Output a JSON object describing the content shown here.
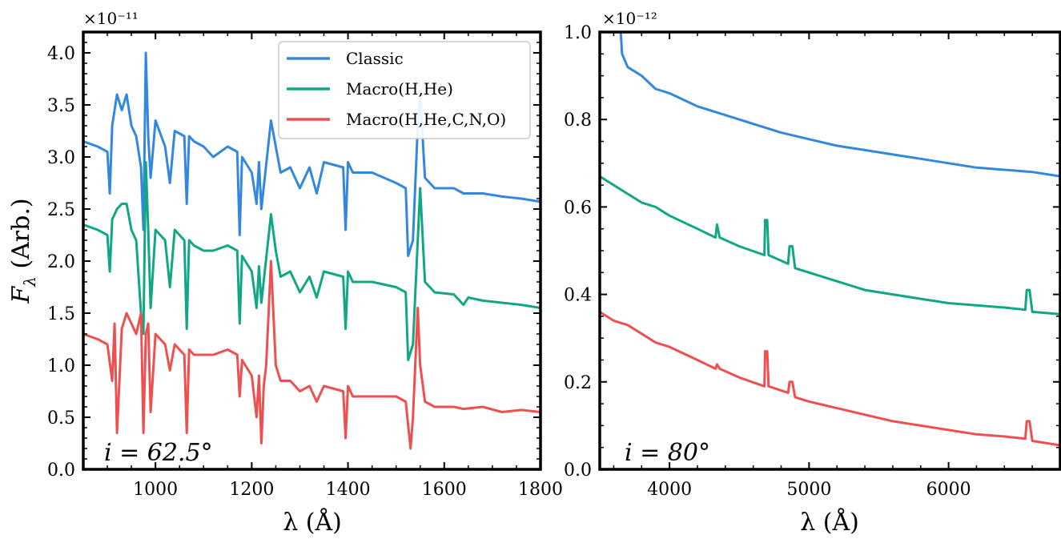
{
  "chart_data": [
    {
      "type": "line",
      "panel": "left",
      "xlabel": "λ (Å)",
      "ylabel": "F_λ (Arb.)",
      "ylabel_main": "F",
      "ylabel_sub": "λ",
      "ylabel_rest": " (Arb.)",
      "y_multiplier": "×10⁻¹¹",
      "xlim": [
        850,
        1800
      ],
      "ylim": [
        0.0,
        4.2
      ],
      "xticks": [
        1000,
        1200,
        1400,
        1600,
        1800
      ],
      "xtick_labels": [
        "1000",
        "1200",
        "1400",
        "1600",
        "1800"
      ],
      "yticks": [
        0.0,
        0.5,
        1.0,
        1.5,
        2.0,
        2.5,
        3.0,
        3.5,
        4.0
      ],
      "ytick_labels": [
        "0.0",
        "0.5",
        "1.0",
        "1.5",
        "2.0",
        "2.5",
        "3.0",
        "3.5",
        "4.0"
      ],
      "annotation": "i = 62.5°",
      "legend_position": "top-right",
      "grid": false,
      "series": [
        {
          "name": "Classic",
          "color": "#3388dd",
          "x": [
            850,
            880,
            900,
            905,
            910,
            920,
            930,
            940,
            950,
            960,
            970,
            975,
            980,
            985,
            990,
            1000,
            1020,
            1030,
            1040,
            1060,
            1065,
            1070,
            1080,
            1100,
            1120,
            1150,
            1170,
            1175,
            1180,
            1200,
            1210,
            1215,
            1220,
            1240,
            1250,
            1260,
            1280,
            1300,
            1320,
            1335,
            1350,
            1390,
            1395,
            1400,
            1410,
            1450,
            1500,
            1520,
            1525,
            1535,
            1545,
            1550,
            1560,
            1580,
            1620,
            1640,
            1680,
            1720,
            1760,
            1800
          ],
          "values": [
            3.15,
            3.1,
            3.05,
            2.65,
            3.3,
            3.6,
            3.45,
            3.6,
            3.3,
            3.2,
            2.9,
            2.3,
            4.0,
            3.2,
            2.8,
            3.35,
            3.1,
            2.75,
            3.25,
            3.2,
            2.55,
            3.2,
            3.15,
            3.1,
            3.0,
            3.1,
            3.05,
            2.25,
            3.0,
            2.85,
            2.55,
            2.95,
            2.5,
            3.35,
            3.1,
            2.85,
            2.9,
            2.7,
            2.9,
            2.65,
            2.95,
            2.9,
            2.3,
            2.95,
            2.85,
            2.85,
            2.75,
            2.7,
            2.05,
            2.2,
            3.3,
            3.6,
            2.8,
            2.7,
            2.7,
            2.65,
            2.65,
            2.62,
            2.6,
            2.57
          ]
        },
        {
          "name": "Macro(H,He)",
          "color": "#12a784",
          "x": [
            850,
            880,
            900,
            905,
            910,
            920,
            930,
            940,
            950,
            960,
            970,
            975,
            980,
            985,
            990,
            1000,
            1020,
            1030,
            1040,
            1060,
            1065,
            1070,
            1080,
            1100,
            1120,
            1150,
            1170,
            1175,
            1180,
            1200,
            1210,
            1215,
            1220,
            1240,
            1250,
            1260,
            1280,
            1300,
            1320,
            1335,
            1350,
            1390,
            1395,
            1400,
            1410,
            1450,
            1500,
            1520,
            1525,
            1535,
            1545,
            1550,
            1560,
            1580,
            1620,
            1640,
            1650,
            1680,
            1720,
            1760,
            1800
          ],
          "values": [
            2.35,
            2.3,
            2.25,
            1.9,
            2.4,
            2.5,
            2.55,
            2.55,
            2.3,
            2.2,
            1.5,
            1.3,
            2.95,
            2.3,
            1.55,
            2.3,
            2.2,
            1.75,
            2.3,
            2.2,
            1.35,
            2.2,
            2.15,
            2.1,
            2.1,
            2.15,
            2.1,
            1.4,
            2.05,
            1.9,
            1.55,
            1.95,
            1.6,
            2.45,
            2.1,
            1.85,
            1.9,
            1.7,
            1.85,
            1.65,
            1.9,
            1.85,
            1.35,
            1.9,
            1.8,
            1.8,
            1.75,
            1.7,
            1.05,
            1.2,
            2.2,
            2.7,
            1.8,
            1.7,
            1.68,
            1.58,
            1.65,
            1.62,
            1.6,
            1.58,
            1.55
          ]
        },
        {
          "name": "Macro(H,He,C,N,O)",
          "color": "#ee5050",
          "x": [
            850,
            880,
            900,
            910,
            915,
            920,
            930,
            940,
            950,
            960,
            970,
            975,
            980,
            985,
            990,
            1000,
            1020,
            1030,
            1040,
            1060,
            1065,
            1070,
            1080,
            1100,
            1120,
            1150,
            1170,
            1175,
            1180,
            1200,
            1210,
            1215,
            1220,
            1225,
            1230,
            1240,
            1250,
            1260,
            1280,
            1300,
            1320,
            1335,
            1350,
            1390,
            1395,
            1400,
            1410,
            1450,
            1500,
            1520,
            1530,
            1535,
            1545,
            1550,
            1560,
            1580,
            1620,
            1640,
            1680,
            1720,
            1760,
            1800
          ],
          "values": [
            1.3,
            1.25,
            1.2,
            0.85,
            1.4,
            0.35,
            1.35,
            1.5,
            1.4,
            1.3,
            1.5,
            0.35,
            1.3,
            1.4,
            0.55,
            1.3,
            1.2,
            0.95,
            1.2,
            1.1,
            0.35,
            1.15,
            1.1,
            1.1,
            1.1,
            1.15,
            1.1,
            0.7,
            1.05,
            0.9,
            0.5,
            0.9,
            0.25,
            0.8,
            1.0,
            2.0,
            1.0,
            0.85,
            0.85,
            0.75,
            0.8,
            0.65,
            0.8,
            0.75,
            0.3,
            0.8,
            0.7,
            0.7,
            0.7,
            0.65,
            0.2,
            0.5,
            1.55,
            1.0,
            0.65,
            0.6,
            0.6,
            0.58,
            0.6,
            0.55,
            0.57,
            0.55
          ]
        }
      ]
    },
    {
      "type": "line",
      "panel": "right",
      "xlabel": "λ (Å)",
      "y_multiplier": "×10⁻¹²",
      "xlim": [
        3500,
        6800
      ],
      "ylim": [
        0.0,
        1.0
      ],
      "xticks": [
        4000,
        5000,
        6000
      ],
      "xtick_labels": [
        "4000",
        "5000",
        "6000"
      ],
      "yticks": [
        0.0,
        0.2,
        0.4,
        0.6,
        0.8,
        1.0
      ],
      "ytick_labels": [
        "0.0",
        "0.2",
        "0.4",
        "0.6",
        "0.8",
        "1.0"
      ],
      "annotation": "i = 80°",
      "grid": false,
      "series": [
        {
          "name": "Classic",
          "color": "#3388dd",
          "x": [
            3650,
            3660,
            3700,
            3800,
            3900,
            4000,
            4200,
            4400,
            4600,
            4800,
            5000,
            5200,
            5400,
            5600,
            5800,
            6000,
            6200,
            6400,
            6600,
            6800
          ],
          "values": [
            1.0,
            0.95,
            0.92,
            0.9,
            0.87,
            0.86,
            0.83,
            0.81,
            0.79,
            0.77,
            0.755,
            0.74,
            0.73,
            0.72,
            0.71,
            0.7,
            0.69,
            0.685,
            0.68,
            0.67
          ]
        },
        {
          "name": "Macro(H,He)",
          "color": "#12a784",
          "x": [
            3500,
            3600,
            3700,
            3800,
            3900,
            4000,
            4200,
            4330,
            4340,
            4360,
            4500,
            4680,
            4685,
            4700,
            4710,
            4850,
            4860,
            4880,
            4900,
            5000,
            5200,
            5400,
            5600,
            5800,
            6000,
            6200,
            6400,
            6550,
            6560,
            6580,
            6600,
            6800
          ],
          "values": [
            0.67,
            0.65,
            0.63,
            0.61,
            0.6,
            0.58,
            0.55,
            0.53,
            0.56,
            0.53,
            0.51,
            0.49,
            0.57,
            0.57,
            0.49,
            0.47,
            0.51,
            0.51,
            0.46,
            0.45,
            0.43,
            0.41,
            0.4,
            0.39,
            0.38,
            0.375,
            0.37,
            0.365,
            0.41,
            0.41,
            0.36,
            0.355
          ]
        },
        {
          "name": "Macro(H,He,C,N,O)",
          "color": "#ee5050",
          "x": [
            3500,
            3600,
            3700,
            3800,
            3900,
            4000,
            4200,
            4330,
            4340,
            4360,
            4500,
            4680,
            4685,
            4700,
            4710,
            4850,
            4860,
            4880,
            4900,
            5000,
            5200,
            5400,
            5600,
            5800,
            6000,
            6200,
            6400,
            6550,
            6560,
            6580,
            6600,
            6800
          ],
          "values": [
            0.36,
            0.34,
            0.33,
            0.31,
            0.29,
            0.28,
            0.25,
            0.23,
            0.24,
            0.23,
            0.21,
            0.19,
            0.27,
            0.27,
            0.19,
            0.175,
            0.2,
            0.2,
            0.165,
            0.155,
            0.14,
            0.125,
            0.11,
            0.1,
            0.09,
            0.08,
            0.075,
            0.07,
            0.11,
            0.11,
            0.065,
            0.055
          ]
        }
      ]
    }
  ]
}
